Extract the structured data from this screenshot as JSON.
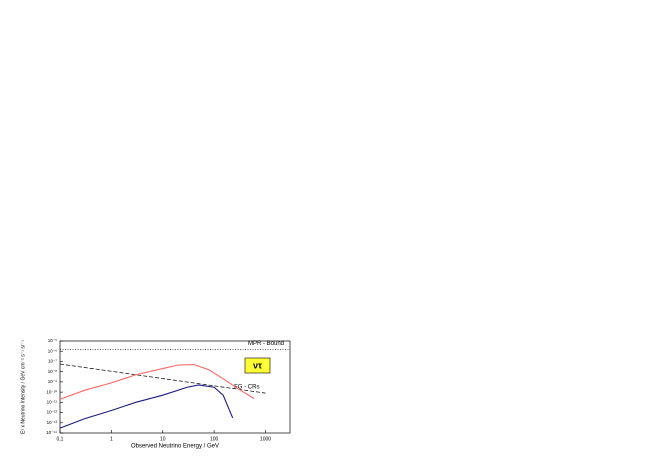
{
  "chart_data": {
    "type": "line",
    "xlabel": "Observed Neutrino Energy / GeV",
    "ylabel": "E² x Neutrino Intensity / GeV cm⁻² s⁻¹ sr⁻¹",
    "xscale": "log",
    "yscale": "log",
    "xlim": [
      0.1,
      3000
    ],
    "ylim": [
      1e-14,
      1e-05
    ],
    "xticks": [
      {
        "value": 0.1,
        "label": "0,1"
      },
      1,
      10,
      100,
      1000
    ],
    "yticks": [
      {
        "value": 1e-14,
        "label": "10⁻¹⁴"
      },
      {
        "value": 1e-13,
        "label": "10⁻¹³"
      },
      {
        "value": 1e-12,
        "label": "10⁻¹²"
      },
      {
        "value": 1e-11,
        "label": "10⁻¹¹"
      },
      {
        "value": 1e-10,
        "label": "10⁻¹⁰"
      },
      {
        "value": 1e-09,
        "label": "10⁻⁹"
      },
      {
        "value": 1e-08,
        "label": "10⁻⁸"
      },
      {
        "value": 1e-07,
        "label": "10⁻⁷"
      },
      {
        "value": 1e-06,
        "label": "10⁻⁶"
      },
      {
        "value": 1e-05,
        "label": "10⁻⁵"
      }
    ],
    "annotation": "ντ",
    "series": [
      {
        "name": "MPR - Bound",
        "color": "#000000",
        "dash": "dotted",
        "x": [
          0.1,
          3000
        ],
        "values": [
          1.5e-06,
          1.5e-06
        ]
      },
      {
        "name": "FG - CRs",
        "color": "#000000",
        "dash": "dashed",
        "x": [
          0.1,
          1000
        ],
        "values": [
          5.6e-08,
          8e-11
        ]
      },
      {
        "color": "#ff6666",
        "dash": "solid",
        "x": [
          0.1,
          0.3,
          1,
          3,
          10,
          20,
          40,
          80,
          150,
          300,
          600
        ],
        "values": [
          2e-11,
          1.5e-10,
          8e-10,
          5e-09,
          2e-08,
          4.5e-08,
          5e-08,
          1.5e-08,
          2e-09,
          2e-10,
          2.3e-11
        ]
      },
      {
        "color": "#1a1a80",
        "dash": "solid",
        "x": [
          0.1,
          0.3,
          1,
          3,
          10,
          30,
          50,
          100,
          150,
          230
        ],
        "values": [
          3e-14,
          2.5e-13,
          1.6e-12,
          1e-11,
          5e-11,
          3e-10,
          5e-10,
          3e-10,
          5e-11,
          3e-13
        ]
      }
    ]
  }
}
